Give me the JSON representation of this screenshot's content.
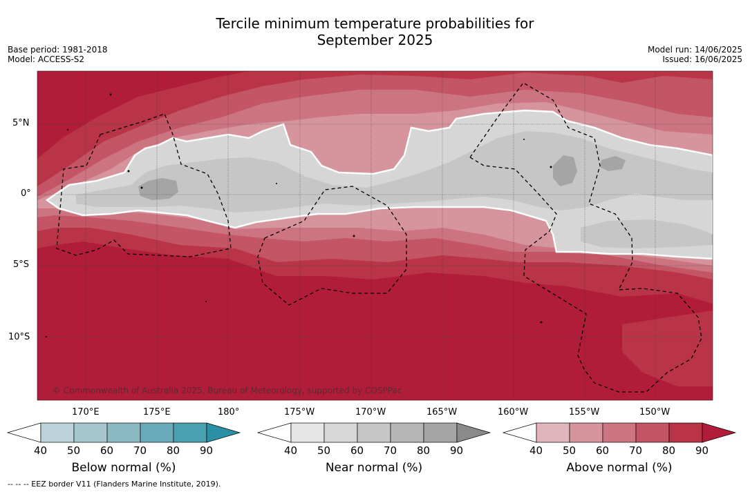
{
  "title": {
    "line1": "Tercile minimum temperature probabilities for",
    "line2": "September 2025"
  },
  "meta": {
    "base_period": "Base period: 1981-2018",
    "model": "Model: ACCESS-S2",
    "model_run": "Model run: 14/06/2025",
    "issued": "Issued: 16/06/2025"
  },
  "map": {
    "lat_labels": [
      "5°N",
      "0°",
      "5°S",
      "10°S"
    ],
    "lon_labels": [
      "170°E",
      "175°E",
      "180°",
      "175°W",
      "170°W",
      "165°W",
      "160°W",
      "155°W",
      "150°W"
    ],
    "copyright": "© Commonwealth of Australia 2025, Bureau of Meteorology, supported by COSPPac"
  },
  "colorbars": [
    {
      "title": "Below normal (%)",
      "ticks": [
        "40",
        "50",
        "60",
        "70",
        "80",
        "90"
      ],
      "colors": [
        "#bdd3da",
        "#a7c7ce",
        "#8ab8c3",
        "#6aa9b8",
        "#49a0b0",
        "#2b90a6"
      ]
    },
    {
      "title": "Near normal (%)",
      "ticks": [
        "40",
        "50",
        "60",
        "70",
        "80",
        "90"
      ],
      "colors": [
        "#e6e6e6",
        "#d7d7d7",
        "#c6c6c6",
        "#b6b6b6",
        "#a5a5a5",
        "#8a8a8a"
      ]
    },
    {
      "title": "Above normal (%)",
      "ticks": [
        "40",
        "50",
        "60",
        "70",
        "80",
        "90"
      ],
      "colors": [
        "#e0b5bb",
        "#d6959c",
        "#cc7580",
        "#c35564",
        "#ba3448",
        "#b11c38"
      ]
    }
  ],
  "footnote": "-- -- -- EEZ border V11 (Flanders Marine Institute, 2019).",
  "colors": {
    "near_light": "#d6d6d6",
    "near_mid": "#c6c6c6",
    "near_dark": "#a5a5a5",
    "above_40": "#e0b5bb",
    "above_50": "#d6959c",
    "above_60": "#cc7580",
    "above_70": "#c35564",
    "above_80": "#ba3448",
    "above_90": "#b11c38"
  }
}
